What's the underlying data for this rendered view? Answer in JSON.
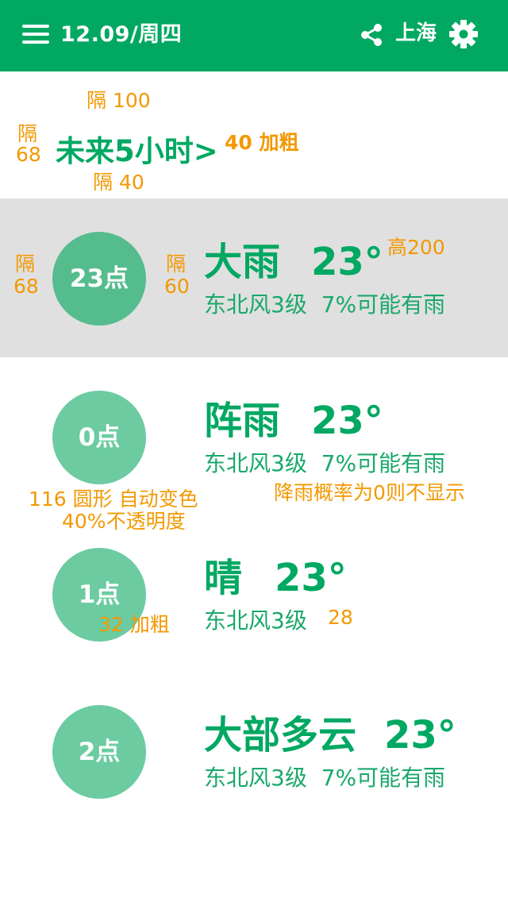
{
  "header": {
    "date": "12.09/周四",
    "city": "上海",
    "menu_icon": "menu-icon",
    "share_icon": "share-icon",
    "settings_icon": "gear-icon",
    "accent_color": "#00a862"
  },
  "section": {
    "title": "未来5小时>"
  },
  "hours": [
    {
      "hour": "23点",
      "weather": "大雨",
      "temp": "23°",
      "wind": "东北风3级",
      "rain": "7%可能有雨",
      "highlighted": true
    },
    {
      "hour": "0点",
      "weather": "阵雨",
      "temp": "23°",
      "wind": "东北风3级",
      "rain": "7%可能有雨",
      "highlighted": false
    },
    {
      "hour": "1点",
      "weather": "晴",
      "temp": "23°",
      "wind": "东北风3级",
      "rain": "",
      "highlighted": false
    },
    {
      "hour": "2点",
      "weather": "大部多云",
      "temp": "23°",
      "wind": "东北风3级",
      "rain": "7%可能有雨",
      "highlighted": false
    }
  ],
  "annotations": {
    "gap_100": "隔 100",
    "gap_68_a_1": "隔",
    "gap_68_a_2": "68",
    "title_spec": "40 加粗",
    "gap_40": "隔 40",
    "gap_68_b_1": "隔",
    "gap_68_b_2": "68",
    "gap_60_1": "隔",
    "gap_60_2": "60",
    "height_200": "高200",
    "circle_spec_1": "116 圆形  自动变色",
    "circle_spec_2": "40%不透明度",
    "rain_rule": "降雨概率为0则不显示",
    "hour_font": "32 加粗",
    "detail_font": "28"
  }
}
